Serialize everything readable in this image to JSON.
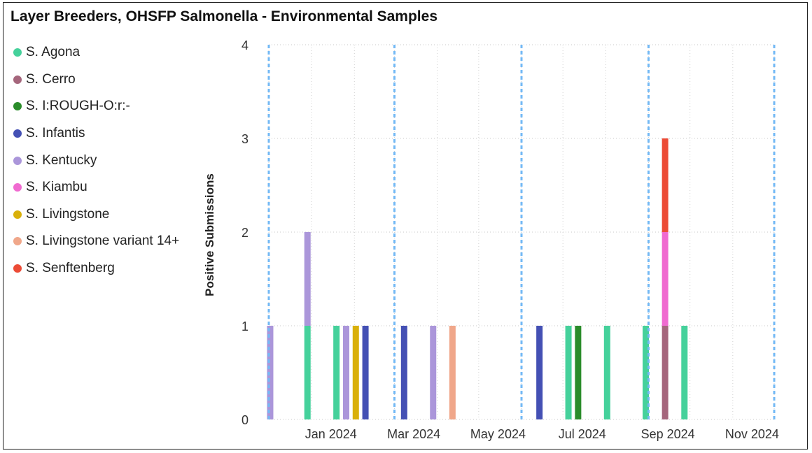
{
  "title": "Layer Breeders, OHSFP Salmonella - Environmental Samples",
  "legend": [
    {
      "name": "S. Agona",
      "color": "#45d19b"
    },
    {
      "name": "S. Cerro",
      "color": "#a5667c"
    },
    {
      "name": "S. I:ROUGH-O:r:-",
      "color": "#2a8c2a"
    },
    {
      "name": "S. Infantis",
      "color": "#4450b4"
    },
    {
      "name": "S. Kentucky",
      "color": "#ab96da"
    },
    {
      "name": "S. Kiambu",
      "color": "#f06ad0"
    },
    {
      "name": "S. Livingstone",
      "color": "#d9b00a"
    },
    {
      "name": "S. Livingstone variant 14+",
      "color": "#f0a78a"
    },
    {
      "name": "S. Senftenberg",
      "color": "#ec4b36"
    }
  ],
  "chart_data": {
    "type": "bar",
    "stacked": true,
    "title": "Layer Breeders, OHSFP Salmonella - Environmental Samples",
    "xlabel": "",
    "ylabel": "Positive Submissions",
    "ylim": [
      0,
      4
    ],
    "y_ticks": [
      "0",
      "1",
      "2",
      "3",
      "4"
    ],
    "x_tick_labels": [
      "Jan 2024",
      "Mar 2024",
      "May 2024",
      "Jul 2024",
      "Sep 2024",
      "Nov 2024"
    ],
    "grid": true,
    "legend_position": "left",
    "quarter_marker_dates": [
      "2023-12-01",
      "2024-03-01",
      "2024-06-01",
      "2024-09-01",
      "2024-12-01"
    ],
    "bars": [
      {
        "date": "2023-12-02",
        "segments": [
          {
            "series": "S. Kentucky",
            "value": 1
          }
        ]
      },
      {
        "date": "2023-12-29",
        "segments": [
          {
            "series": "S. Agona",
            "value": 1
          },
          {
            "series": "S. Kentucky",
            "value": 1
          }
        ]
      },
      {
        "date": "2024-01-19",
        "segments": [
          {
            "series": "S. Agona",
            "value": 1
          }
        ]
      },
      {
        "date": "2024-01-26",
        "segments": [
          {
            "series": "S. Kentucky",
            "value": 1
          }
        ]
      },
      {
        "date": "2024-02-02",
        "segments": [
          {
            "series": "S. Livingstone",
            "value": 1
          }
        ]
      },
      {
        "date": "2024-02-09",
        "segments": [
          {
            "series": "S. Infantis",
            "value": 1
          }
        ]
      },
      {
        "date": "2024-03-08",
        "segments": [
          {
            "series": "S. Infantis",
            "value": 1
          }
        ]
      },
      {
        "date": "2024-03-29",
        "segments": [
          {
            "series": "S. Kentucky",
            "value": 1
          }
        ]
      },
      {
        "date": "2024-04-12",
        "segments": [
          {
            "series": "S. Livingstone variant 14+",
            "value": 1
          }
        ]
      },
      {
        "date": "2024-06-14",
        "segments": [
          {
            "series": "S. Infantis",
            "value": 1
          }
        ]
      },
      {
        "date": "2024-07-05",
        "segments": [
          {
            "series": "S. Agona",
            "value": 1
          }
        ]
      },
      {
        "date": "2024-07-12",
        "segments": [
          {
            "series": "S. I:ROUGH-O:r:-",
            "value": 1
          }
        ]
      },
      {
        "date": "2024-08-02",
        "segments": [
          {
            "series": "S. Agona",
            "value": 1
          }
        ]
      },
      {
        "date": "2024-08-30",
        "segments": [
          {
            "series": "S. Agona",
            "value": 1
          }
        ]
      },
      {
        "date": "2024-09-13",
        "segments": [
          {
            "series": "S. Cerro",
            "value": 1
          },
          {
            "series": "S. Kiambu",
            "value": 1
          },
          {
            "series": "S. Senftenberg",
            "value": 1
          }
        ]
      },
      {
        "date": "2024-09-27",
        "segments": [
          {
            "series": "S. Agona",
            "value": 1
          }
        ]
      }
    ]
  }
}
